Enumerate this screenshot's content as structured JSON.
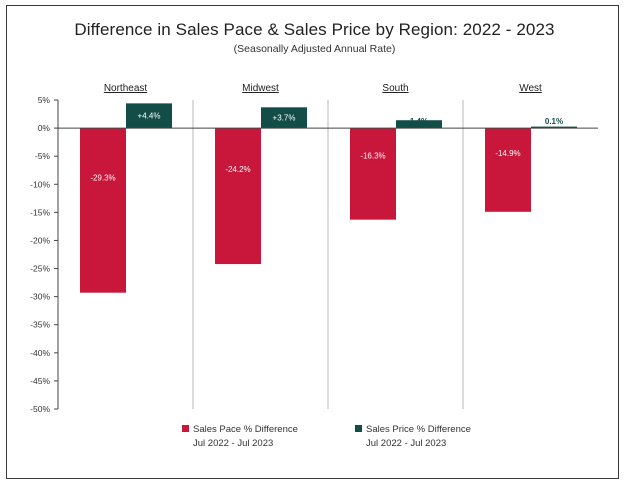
{
  "title": "Difference in Sales Pace & Sales Price by Region: 2022 - 2023",
  "subtitle": "(Seasonally Adjusted Annual Rate)",
  "colors": {
    "pace": "#c8173a",
    "price": "#124d48",
    "axis": "#444444",
    "divider": "#b8b8b8"
  },
  "legend": [
    {
      "name": "Sales Pace % Difference",
      "period": "Jul 2022 - Jul 2023"
    },
    {
      "name": "Sales Price % Difference",
      "period": "Jul 2022 - Jul 2023"
    }
  ],
  "chart_data": {
    "type": "bar",
    "categories": [
      "Northeast",
      "Midwest",
      "South",
      "West"
    ],
    "series": [
      {
        "name": "Sales Pace % Difference",
        "values": [
          -29.3,
          -24.2,
          -16.3,
          -14.9
        ],
        "labels": [
          "-29.3%",
          "-24.2%",
          "-16.3%",
          "-14.9%"
        ]
      },
      {
        "name": "Sales Price % Difference",
        "values": [
          4.4,
          3.7,
          1.4,
          0.1
        ],
        "labels": [
          "+4.4%",
          "+3.7%",
          "1.4%",
          "0.1%"
        ]
      }
    ],
    "ylim": [
      -50,
      5
    ],
    "yticks": [
      5,
      0,
      -5,
      -10,
      -15,
      -20,
      -25,
      -30,
      -35,
      -40,
      -45,
      -50
    ],
    "ytick_labels": [
      "5%",
      "0%",
      "-5%",
      "-10%",
      "-15%",
      "-20%",
      "-25%",
      "-30%",
      "-35%",
      "-40%",
      "-45%",
      "-50%"
    ],
    "legend_position": "bottom",
    "grid": false
  }
}
